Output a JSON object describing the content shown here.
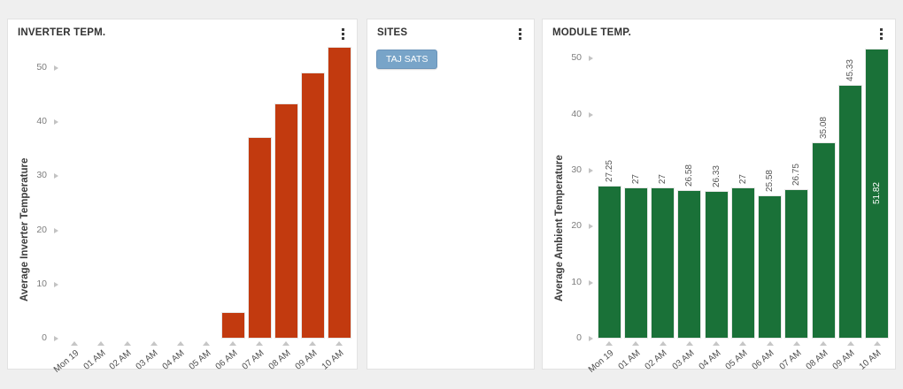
{
  "page": {
    "background": "#efefef"
  },
  "icons": {
    "panel_menu": "kebab-menu-icon",
    "y_tick_marker": "triangle-right-icon",
    "x_tick_marker": "triangle-up-icon"
  },
  "colors": {
    "inverter_bar": "#c23a0f",
    "module_bar": "#1a7138",
    "site_button_bg": "#78a4c8",
    "site_button_border": "#6b94ba",
    "panel_title_text": "#333333",
    "axis_tick_text": "#7d7d7d",
    "tick_marker": "#c3c3c3"
  },
  "panels": {
    "sites": {
      "title": "SITES",
      "site_buttons": [
        "TAJ SATS"
      ]
    }
  },
  "chart_data": [
    {
      "type": "bar",
      "title": "INVERTER TEPM.",
      "ylabel": "Average Inverter Temperature",
      "xlabel": "",
      "categories": [
        "Mon 19",
        "01 AM",
        "02 AM",
        "03 AM",
        "04 AM",
        "05 AM",
        "06 AM",
        "07 AM",
        "08 AM",
        "09 AM",
        "10 AM"
      ],
      "values": [
        0,
        0,
        0,
        0,
        0,
        0,
        4.9,
        37.3,
        43.5,
        49.2,
        53.9
      ],
      "bar_labels": null,
      "yticks": [
        0,
        10,
        20,
        30,
        40,
        50
      ],
      "ylim": [
        0,
        54.7
      ],
      "grid": false,
      "legend": "none",
      "color": "#c23a0f"
    },
    {
      "type": "bar",
      "title": "MODULE TEMP.",
      "ylabel": "Average Ambient Temperature",
      "xlabel": "",
      "categories": [
        "Mon 19",
        "01 AM",
        "02 AM",
        "03 AM",
        "04 AM",
        "05 AM",
        "06 AM",
        "07 AM",
        "08 AM",
        "09 AM",
        "10 AM"
      ],
      "values": [
        27.25,
        27,
        27,
        26.58,
        26.33,
        27,
        25.58,
        26.75,
        35.08,
        45.33,
        51.82
      ],
      "bar_labels": [
        "27.25",
        "27",
        "27",
        "26.58",
        "26.33",
        "27",
        "25.58",
        "26.75",
        "35.08",
        "45.33",
        "51.82"
      ],
      "inside_label_indices": [
        10
      ],
      "yticks": [
        0,
        10,
        20,
        30,
        40,
        50
      ],
      "ylim": [
        0,
        52.9
      ],
      "grid": false,
      "legend": "none",
      "color": "#1a7138"
    }
  ]
}
